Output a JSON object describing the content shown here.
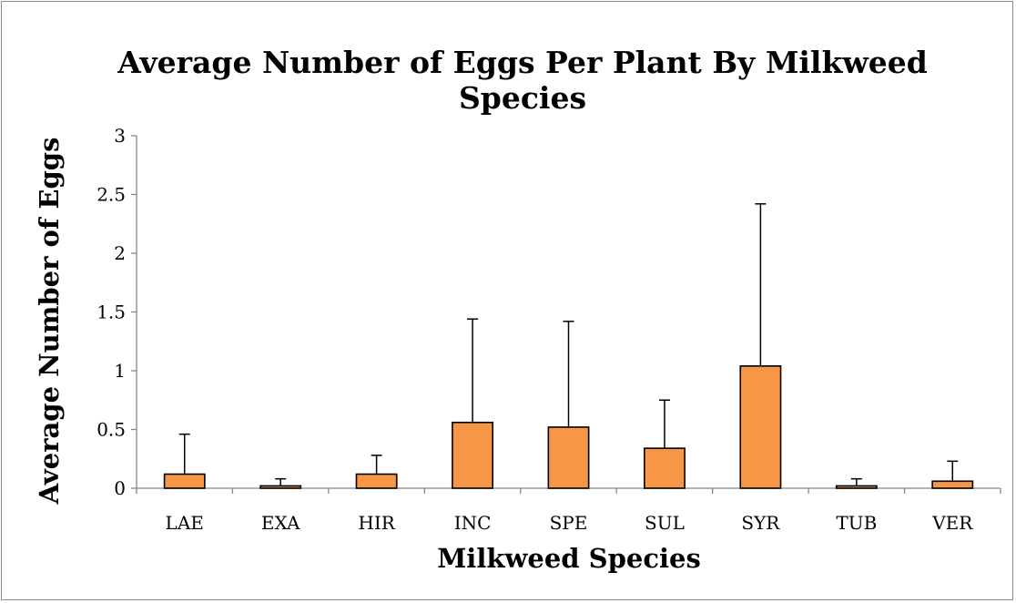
{
  "chart_data": {
    "type": "bar",
    "title_lines": [
      "Average Number of Eggs Per Plant By Milkweed",
      "Species"
    ],
    "xlabel": "Milkweed Species",
    "ylabel": "Average Number of  Eggs",
    "categories": [
      "LAE",
      "EXA",
      "HIR",
      "INC",
      "SPE",
      "SUL",
      "SYR",
      "TUB",
      "VER"
    ],
    "series": [
      {
        "values": [
          0.12,
          0.02,
          0.12,
          0.56,
          0.52,
          0.34,
          1.04,
          0.02,
          0.06
        ],
        "error_upper": [
          0.34,
          0.06,
          0.16,
          0.88,
          0.9,
          0.41,
          1.38,
          0.06,
          0.17
        ],
        "color": "#f79646",
        "edge_color": "#000000"
      }
    ],
    "ylim": [
      0,
      3
    ],
    "yticks": [
      0,
      0.5,
      1,
      1.5,
      2,
      2.5,
      3
    ],
    "ytick_labels": [
      "0",
      "0.5",
      "1",
      "1.5",
      "2",
      "2.5",
      "3"
    ],
    "grid": false,
    "legend": "none",
    "error_bars": "upper only"
  }
}
